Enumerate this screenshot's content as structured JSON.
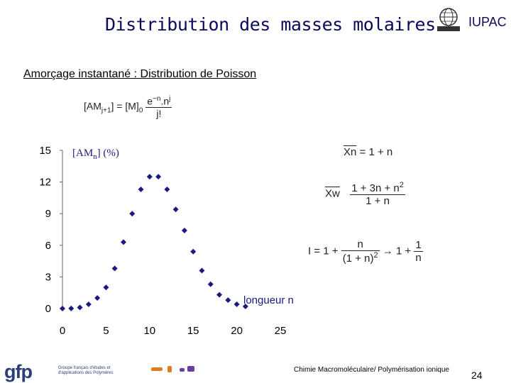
{
  "header": {
    "title": "Distribution des masses molaires",
    "org": "IUPAC"
  },
  "subtitle": "Amorçage instantané : Distribution de Poisson",
  "formulas": {
    "poisson_lhs": "[AM",
    "poisson_lhs_sub": "j+1",
    "poisson_mid": "] = [M]",
    "poisson_mid_sub": "0",
    "poisson_num": "e",
    "poisson_num_sup": "−n",
    "poisson_num_rest": ".n",
    "poisson_num_sup2": "j",
    "poisson_den": "j!",
    "xn_lhs": "Xn",
    "xn_rhs": "= 1 + n",
    "xw_lhs": "Xw",
    "xw_num": "1 + 3n + n",
    "xw_num_sup": "2",
    "xw_den": "1 + n",
    "i_lhs": "I = 1 +",
    "i_num": "n",
    "i_den": "(1 + n)",
    "i_den_sup": "2",
    "i_arrow": "→ 1 +",
    "i_num2": "1",
    "i_den2": "n"
  },
  "chart_data": {
    "type": "scatter",
    "ylabel": "[AMn] (%)",
    "xlabel": "longueur n",
    "xlim": [
      0,
      25
    ],
    "ylim": [
      0,
      15
    ],
    "xticks": [
      "0",
      "5",
      "10",
      "15",
      "20",
      "25"
    ],
    "yticks": [
      "0",
      "3",
      "6",
      "9",
      "12",
      "15"
    ],
    "marker_color": "#1a1a80",
    "series": [
      {
        "x": [
          0,
          1,
          2,
          3,
          4,
          5,
          6,
          7,
          8,
          9,
          10,
          11,
          12,
          13,
          14,
          15,
          16,
          17,
          18,
          19,
          20,
          21
        ],
        "values": [
          0.0,
          0.01,
          0.1,
          0.4,
          1.0,
          2.0,
          3.8,
          6.3,
          9.0,
          11.3,
          12.5,
          12.5,
          11.3,
          9.4,
          7.4,
          5.4,
          3.6,
          2.3,
          1.3,
          0.8,
          0.4,
          0.2
        ]
      }
    ]
  },
  "footer": {
    "logo": "gfp",
    "logo_sub": "Groupe français d'études et d'applications des Polymères",
    "course": "Chimie Macromoléculaire/ Polymérisation ionique",
    "page": "24"
  },
  "colors": {
    "title": "#0b0b5c",
    "gfp": "#2a3f7a",
    "dash_orange": "#e07b1f",
    "dash_purple": "#6b3fa0"
  }
}
